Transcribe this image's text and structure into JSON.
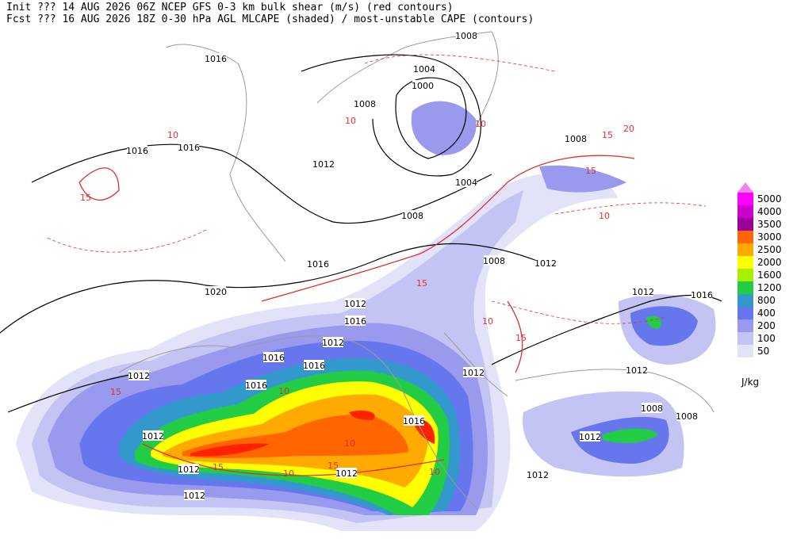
{
  "header": {
    "line1": "Init  ??? 14 AUG 2026 06Z  NCEP GFS 0-3 km bulk shear (m/s) (red contours)",
    "line2": "Fcst ??? 16 AUG 2026 18Z  0-30 hPa AGL MLCAPE (shaded) / most-unstable CAPE (contours)"
  },
  "legend": {
    "unit": "J/kg",
    "top_color": "#f080f0",
    "levels": [
      {
        "label": "5000",
        "color": "#ff00ff"
      },
      {
        "label": "4000",
        "color": "#cc00cc"
      },
      {
        "label": "3500",
        "color": "#990099"
      },
      {
        "label": "3000",
        "color": "#ff6600"
      },
      {
        "label": "2500",
        "color": "#ffaa00"
      },
      {
        "label": "2000",
        "color": "#ffff00"
      },
      {
        "label": "1600",
        "color": "#aaee00"
      },
      {
        "label": "1200",
        "color": "#22cc44"
      },
      {
        "label": "800",
        "color": "#3399cc"
      },
      {
        "label": "400",
        "color": "#6677ee"
      },
      {
        "label": "200",
        "color": "#9999ee"
      },
      {
        "label": "100",
        "color": "#c4c4f4"
      },
      {
        "label": "50",
        "color": "#e2e2f8"
      }
    ]
  },
  "isobar_labels": [
    "1016",
    "1008",
    "1004",
    "1000",
    "1008",
    "1008",
    "1016",
    "1016",
    "1012",
    "1004",
    "1008",
    "1008",
    "1012",
    "1016",
    "1020",
    "1012",
    "1016",
    "1012",
    "1016",
    "1016",
    "1012",
    "1012",
    "1016",
    "1016",
    "1012",
    "1012",
    "1012",
    "1012",
    "1012",
    "1012",
    "1008",
    "1012",
    "1016",
    "1012",
    "1008"
  ],
  "shear_labels": [
    "10",
    "15",
    "10",
    "10",
    "15",
    "20",
    "15",
    "10",
    "15",
    "10",
    "10",
    "15",
    "10",
    "15",
    "10",
    "15",
    "10",
    "15"
  ]
}
